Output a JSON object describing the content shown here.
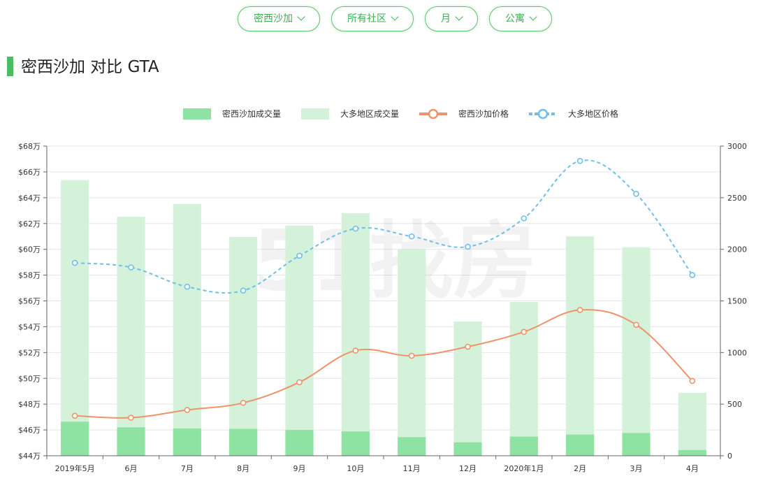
{
  "filters": [
    {
      "label": "密西沙加"
    },
    {
      "label": "所有社区"
    },
    {
      "label": "月"
    },
    {
      "label": "公寓"
    }
  ],
  "page_title": "密西沙加 对比 GTA",
  "watermark": "51找房",
  "colors": {
    "accent": "#4cbd5e",
    "volume_local": "#8ee3a2",
    "volume_gta": "#d4f1d9",
    "price_local": "#ee936a",
    "price_gta": "#6ec0ea"
  },
  "chart_data": {
    "type": "bar",
    "categories": [
      "2019年5月",
      "6月",
      "7月",
      "8月",
      "9月",
      "10月",
      "11月",
      "12月",
      "2020年1月",
      "2月",
      "3月",
      "4月"
    ],
    "series": [
      {
        "name": "密西沙加成交量",
        "kind": "bar",
        "axis": "right",
        "values": [
          330,
          275,
          265,
          260,
          250,
          235,
          180,
          130,
          185,
          205,
          220,
          55
        ]
      },
      {
        "name": "大多地区成交量",
        "kind": "bar",
        "axis": "right",
        "values": [
          2670,
          2315,
          2440,
          2120,
          2230,
          2350,
          2000,
          1300,
          1490,
          2125,
          2020,
          610
        ]
      },
      {
        "name": "密西沙加价格",
        "kind": "line",
        "axis": "left",
        "values": [
          47.1,
          46.95,
          47.55,
          48.1,
          49.7,
          52.15,
          51.75,
          52.45,
          53.6,
          55.3,
          54.15,
          49.8
        ]
      },
      {
        "name": "大多地区价格",
        "kind": "line",
        "axis": "left",
        "values": [
          58.95,
          58.6,
          57.1,
          56.8,
          59.5,
          61.6,
          61.0,
          60.2,
          62.4,
          66.85,
          64.3,
          58.0
        ]
      }
    ],
    "y_left": {
      "min": 44,
      "max": 68,
      "step": 2,
      "tick_labels": [
        "$44万",
        "$46万",
        "$48万",
        "$50万",
        "$52万",
        "$54万",
        "$56万",
        "$58万",
        "$60万",
        "$62万",
        "$64万",
        "$66万",
        "$68万"
      ]
    },
    "y_right": {
      "min": 0,
      "max": 3000,
      "step": 500,
      "tick_labels": [
        "0",
        "500",
        "1000",
        "1500",
        "2000",
        "2500",
        "3000"
      ]
    },
    "grid": true,
    "legend_position": "top-center"
  }
}
